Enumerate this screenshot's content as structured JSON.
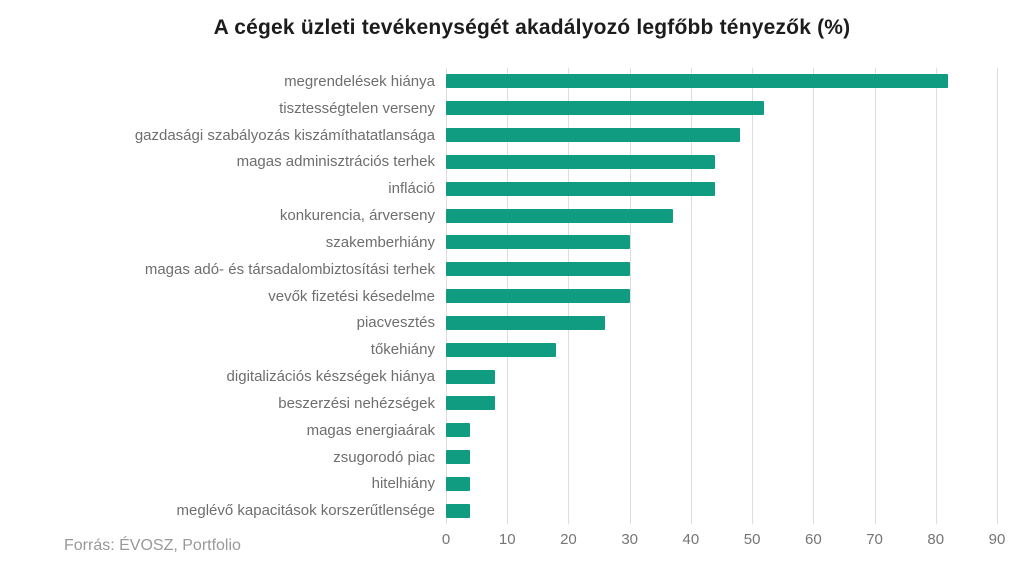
{
  "header": {
    "title": "A cégek üzleti tevékenységét akadályozó legfőbb tényezők (%)"
  },
  "footer": {
    "source": "Forrás: ÉVOSZ, Portfolio"
  },
  "chart_data": {
    "type": "bar",
    "orientation": "horizontal",
    "title": "A cégek üzleti tevékenységét akadályozó legfőbb tényezők (%)",
    "categories": [
      "megrendelések hiánya",
      "tisztességtelen verseny",
      "gazdasági szabályozás kiszámíthatatlansága",
      "magas adminisztrációs terhek",
      "infláció",
      "konkurencia, árverseny",
      "szakemberhiány",
      "magas adó- és társadalombiztosítási terhek",
      "vevők fizetési késedelme",
      "piacvesztés",
      "tőkehiány",
      "digitalizációs készségek hiánya",
      "beszerzési nehézségek",
      "magas energiaárak",
      "zsugorodó piac",
      "hitelhiány",
      "meglévő kapacitások korszerűtlensége"
    ],
    "values": [
      82,
      52,
      48,
      44,
      44,
      37,
      30,
      30,
      30,
      26,
      18,
      8,
      8,
      4,
      4,
      4,
      4
    ],
    "xlabel": "",
    "ylabel": "",
    "xlim": [
      0,
      90
    ],
    "xticks": [
      0,
      10,
      20,
      30,
      40,
      50,
      60,
      70,
      80,
      90
    ],
    "grid": "vertical-only",
    "legend": "none",
    "bar_color": "#0f9c80",
    "label_color": "#6e6e6e",
    "tick_color": "#757575",
    "source": "Forrás: ÉVOSZ, Portfolio"
  }
}
